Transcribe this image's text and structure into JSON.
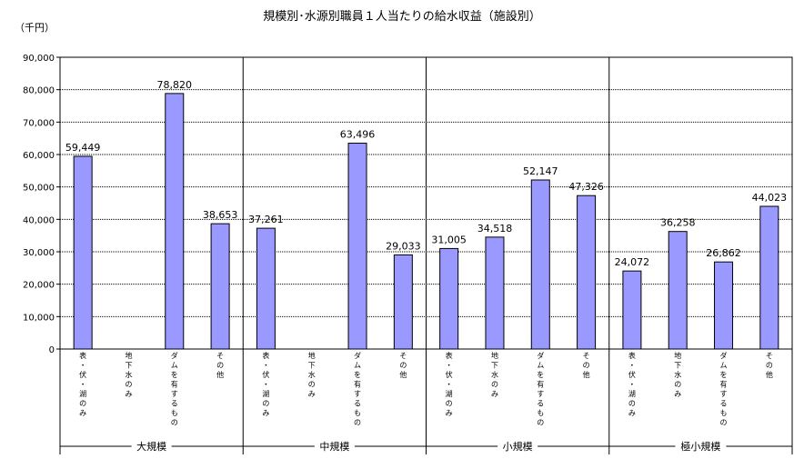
{
  "chart_data": {
    "type": "bar",
    "title": "規模別･水源別職員１人当たりの給水収益（施設別）",
    "unit_label": "（千円）",
    "ylim": [
      0,
      90000
    ],
    "yticks": [
      "0",
      "10,000",
      "20,000",
      "30,000",
      "40,000",
      "50,000",
      "60,000",
      "70,000",
      "80,000",
      "90,000"
    ],
    "grid": true,
    "bar_color": "#9999ff",
    "groups": [
      {
        "name": "大規模",
        "categories": [
          "表・伏・湖のみ",
          "地下水のみ",
          "ダムを有するもの",
          "その他"
        ],
        "values": [
          59449,
          null,
          78820,
          38653
        ],
        "labels": [
          "59,449",
          "",
          "78,820",
          "38,653"
        ]
      },
      {
        "name": "中規模",
        "categories": [
          "表・伏・湖のみ",
          "地下水のみ",
          "ダムを有するもの",
          "その他"
        ],
        "values": [
          37261,
          null,
          63496,
          29033
        ],
        "labels": [
          "37,261",
          "",
          "63,496",
          "29,033"
        ]
      },
      {
        "name": "小規模",
        "categories": [
          "表・伏・湖のみ",
          "地下水のみ",
          "ダムを有するもの",
          "その他"
        ],
        "values": [
          31005,
          34518,
          52147,
          47326
        ],
        "labels": [
          "31,005",
          "34,518",
          "52,147",
          "47,326"
        ]
      },
      {
        "name": "極小規模",
        "categories": [
          "表・伏・湖のみ",
          "地下水のみ",
          "ダムを有するもの",
          "その他"
        ],
        "values": [
          24072,
          36258,
          26862,
          44023
        ],
        "labels": [
          "24,072",
          "36,258",
          "26,862",
          "44,023"
        ]
      }
    ]
  }
}
